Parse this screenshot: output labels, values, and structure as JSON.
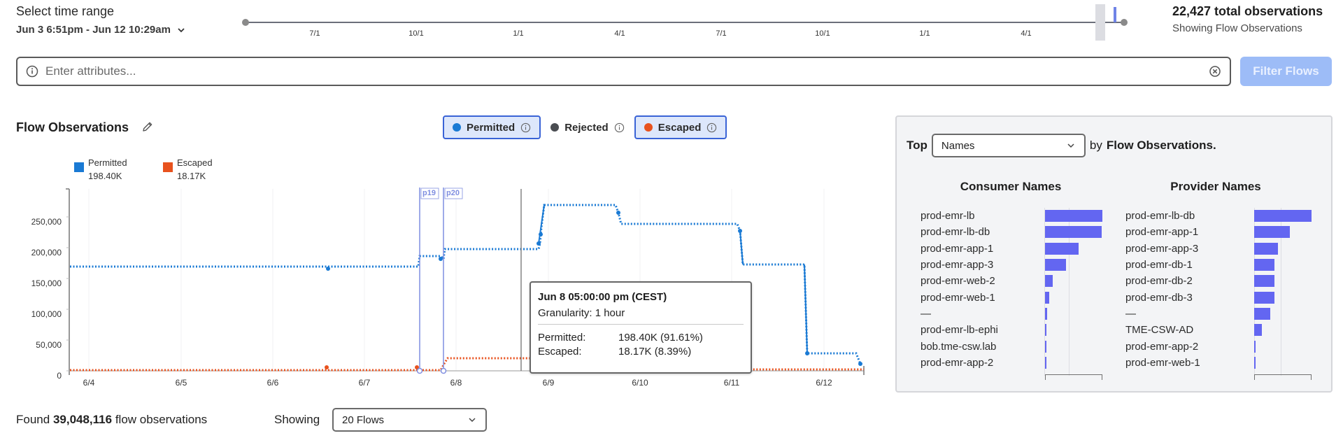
{
  "time_range": {
    "label": "Select time range",
    "value": "Jun 3 6:51pm - Jun 12 10:29am"
  },
  "timeline": {
    "ticks": [
      "7/1",
      "10/1",
      "1/1",
      "4/1",
      "7/1",
      "10/1",
      "1/1",
      "4/1"
    ]
  },
  "observations": {
    "total": "22,427 total observations",
    "subtitle": "Showing Flow Observations"
  },
  "search": {
    "placeholder": "Enter attributes...",
    "value": ""
  },
  "filter_button": "Filter Flows",
  "chart_header": {
    "title": "Flow Observations",
    "toggles": [
      {
        "label": "Permitted",
        "color": "#1a7ad4",
        "active": true
      },
      {
        "label": "Rejected",
        "color": "#4a4d52",
        "active": false
      },
      {
        "label": "Escaped",
        "color": "#e8521e",
        "active": true
      }
    ]
  },
  "legend": [
    {
      "label": "Permitted",
      "value": "198.40K",
      "color": "#1a7ad4"
    },
    {
      "label": "Escaped",
      "value": "18.17K",
      "color": "#e8521e"
    }
  ],
  "markers": [
    "p19",
    "p20"
  ],
  "tooltip": {
    "title": "Jun 8 05:00:00 pm (CEST)",
    "granularity": "Granularity: 1 hour",
    "rows": [
      {
        "label": "Permitted:",
        "value": "198.40K (91.61%)"
      },
      {
        "label": "Escaped:",
        "value": "18.17K (8.39%)"
      }
    ]
  },
  "chart_data": {
    "type": "line",
    "title": "Flow Observations",
    "xlabel": "",
    "ylabel": "",
    "ylim": [
      0,
      300000
    ],
    "y_ticks": [
      "0",
      "50,000",
      "100,000",
      "150,000",
      "200,000",
      "250,000"
    ],
    "x_ticks": [
      "6/4",
      "6/5",
      "6/6",
      "6/7",
      "6/8",
      "6/9",
      "6/10",
      "6/11",
      "6/12"
    ],
    "granularity": "1 hour",
    "series": [
      {
        "name": "Permitted",
        "color": "#1a7ad4",
        "segments": [
          {
            "from": "6/3 18:00",
            "to": "6/7 13:00",
            "value": 170000
          },
          {
            "from": "6/7 14:00",
            "to": "6/7 18:00",
            "value": 185000
          },
          {
            "from": "6/7 19:00",
            "to": "6/8 19:00",
            "value": 198400
          },
          {
            "from": "6/8 21:00",
            "to": "6/9 15:00",
            "value": 268000
          },
          {
            "from": "6/9 17:00",
            "to": "6/10 22:00",
            "value": 238000
          },
          {
            "from": "6/11 01:00",
            "to": "6/11 18:00",
            "value": 170000
          },
          {
            "from": "6/11 19:00",
            "to": "6/12 10:00",
            "value": 28000
          }
        ]
      },
      {
        "name": "Escaped",
        "color": "#e8521e",
        "segments": [
          {
            "from": "6/3 18:00",
            "to": "6/7 18:00",
            "value": 1500
          },
          {
            "from": "6/7 20:00",
            "to": "6/8 20:00",
            "value": 18170
          },
          {
            "from": "6/8 21:00",
            "to": "6/12 10:00",
            "value": 1500
          }
        ]
      }
    ],
    "annotations": [
      "p19",
      "p20",
      "hover: Jun 8 05:00:00 pm (CEST)"
    ]
  },
  "top_panel": {
    "prefix": "Top",
    "select_value": "Names",
    "suffix_plain": "by",
    "suffix_bold": "Flow Observations.",
    "consumer": {
      "title": "Consumer Names",
      "items": [
        {
          "name": "prod-emr-lb",
          "pct": 100
        },
        {
          "name": "prod-emr-lb-db",
          "pct": 99
        },
        {
          "name": "prod-emr-app-1",
          "pct": 58
        },
        {
          "name": "prod-emr-app-3",
          "pct": 37
        },
        {
          "name": "prod-emr-web-2",
          "pct": 13
        },
        {
          "name": "prod-emr-web-1",
          "pct": 7
        },
        {
          "name": "—",
          "pct": 4
        },
        {
          "name": "prod-emr-lb-ephi",
          "pct": 3
        },
        {
          "name": "bob.tme-csw.lab",
          "pct": 3
        },
        {
          "name": "prod-emr-app-2",
          "pct": 2
        }
      ]
    },
    "provider": {
      "title": "Provider Names",
      "items": [
        {
          "name": "prod-emr-lb-db",
          "pct": 100
        },
        {
          "name": "prod-emr-app-1",
          "pct": 62
        },
        {
          "name": "prod-emr-app-3",
          "pct": 41
        },
        {
          "name": "prod-emr-db-1",
          "pct": 35
        },
        {
          "name": "prod-emr-db-2",
          "pct": 35
        },
        {
          "name": "prod-emr-db-3",
          "pct": 35
        },
        {
          "name": "—",
          "pct": 28
        },
        {
          "name": "TME-CSW-AD",
          "pct": 14
        },
        {
          "name": "prod-emr-app-2",
          "pct": 3
        },
        {
          "name": "prod-emr-web-1",
          "pct": 2
        }
      ]
    }
  },
  "footer": {
    "found_prefix": "Found",
    "found_count": "39,048,116",
    "found_suffix": "flow observations",
    "showing_label": "Showing",
    "showing_value": "20 Flows"
  }
}
